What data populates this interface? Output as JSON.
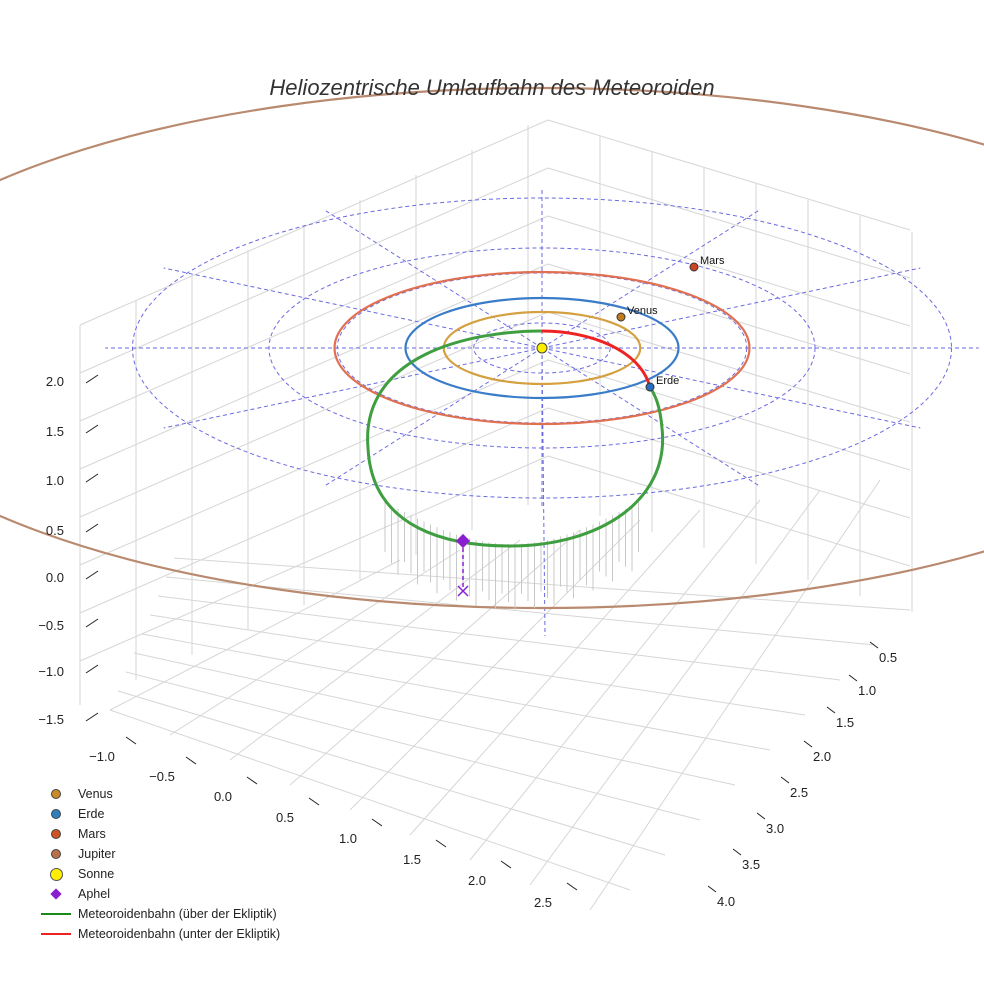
{
  "chart_data": {
    "type": "scatter3d",
    "title": "Heliozentrische Umlaufbahn des Meteoroiden",
    "x_ticks": [
      "−1.0",
      "−0.5",
      "0.0",
      "0.5",
      "1.0",
      "1.5",
      "2.0",
      "2.5"
    ],
    "y_ticks": [
      "0.5",
      "1.0",
      "1.5",
      "2.0",
      "2.5",
      "3.0",
      "3.5",
      "4.0"
    ],
    "z_ticks": [
      "2.0",
      "1.5",
      "1.0",
      "0.5",
      "0.0",
      "−0.5",
      "−1.0",
      "−1.5"
    ],
    "orbits": [
      {
        "name": "Venus",
        "radius_au": 0.72,
        "color": "#d4a040"
      },
      {
        "name": "Erde",
        "radius_au": 1.0,
        "color": "#3a7cc8"
      },
      {
        "name": "Mars",
        "radius_au": 1.52,
        "color": "#e07050"
      },
      {
        "name": "Jupiter",
        "radius_au": 5.2,
        "color": "#b98a70"
      }
    ],
    "grid_circles_au": [
      0.5,
      1.0,
      1.5,
      2.0,
      3.0
    ],
    "planets": [
      {
        "name": "Venus",
        "label": "Venus",
        "color": "#c07a20"
      },
      {
        "name": "Erde",
        "label": "Erde",
        "color": "#2a6fbf"
      },
      {
        "name": "Mars",
        "label": "Mars",
        "color": "#cc4422"
      },
      {
        "name": "Sonne",
        "label": "",
        "color": "#ffee00"
      }
    ],
    "meteoroid": {
      "above_color": "#3f9e3f",
      "below_color": "#ee2222",
      "aphel_color": "#8a1fcf"
    },
    "legend": [
      {
        "label": "Venus",
        "symbol": "dot",
        "color": "#c88a2a"
      },
      {
        "label": "Erde",
        "symbol": "dot",
        "color": "#2f7fc0"
      },
      {
        "label": "Mars",
        "symbol": "dot",
        "color": "#cc5522"
      },
      {
        "label": "Jupiter",
        "symbol": "dot",
        "color": "#b9704a"
      },
      {
        "label": "Sonne",
        "symbol": "sun",
        "color": "#ffee00"
      },
      {
        "label": "Aphel",
        "symbol": "diamond",
        "color": "#8a1fcf"
      },
      {
        "label": "Meteoroidenbahn (über der Ekliptik)",
        "symbol": "line",
        "color": "#1a8a1a"
      },
      {
        "label": "Meteoroidenbahn (unter der Ekliptik)",
        "symbol": "line",
        "color": "#ee2222"
      }
    ]
  }
}
